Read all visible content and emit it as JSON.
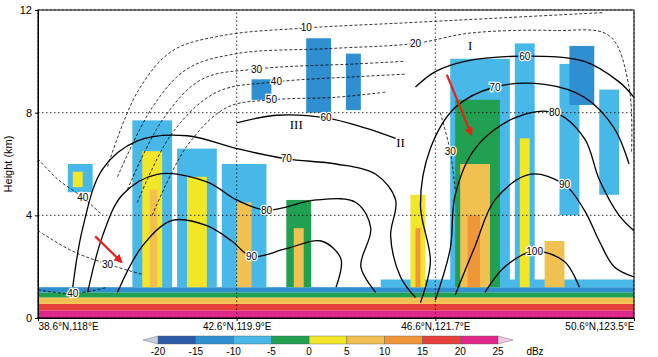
{
  "chart_data": {
    "type": "contour",
    "ylabel": "Height (km)",
    "xlim": [
      38.6,
      50.6
    ],
    "ylim": [
      0,
      12
    ],
    "xticks": [
      {
        "value": 38.6,
        "label": "38.6°N,118°E"
      },
      {
        "value": 42.6,
        "label": "42.6°N,119.9°E"
      },
      {
        "value": 46.6,
        "label": "46.6°N,121.7°E"
      },
      {
        "value": 50.6,
        "label": "50.6°N,123.5°E"
      }
    ],
    "yticks": [
      0,
      4,
      8,
      12
    ],
    "grid": true,
    "series": [
      {
        "level": 10,
        "line_style": "dashed",
        "x": [
          40.0,
          40.6,
          41.3,
          42.3,
          44.0,
          46.0,
          48.0,
          50.0
        ],
        "y": [
          5.9,
          8.8,
          10.4,
          11.0,
          11.3,
          11.5,
          11.7,
          11.9
        ]
      },
      {
        "level": 20,
        "line_style": "dashed",
        "x": [
          40.2,
          40.9,
          41.6,
          42.6,
          44.5,
          46.2,
          47.3,
          49.0,
          50.1,
          50.5,
          50.55
        ],
        "y": [
          5.5,
          8.2,
          9.7,
          10.3,
          10.5,
          10.7,
          11.1,
          11.2,
          11.0,
          9.0,
          6.4
        ]
      },
      {
        "level": 30,
        "line_style": "dashed",
        "x": [
          40.4,
          41.1,
          41.9,
          43.0,
          45.0,
          46.0
        ],
        "y": [
          5.0,
          7.7,
          9.3,
          9.7,
          9.9,
          10.0
        ]
      },
      {
        "level": 40,
        "line_style": "dashed",
        "x": [
          40.6,
          41.3,
          42.2,
          43.4,
          45.0,
          46.0
        ],
        "y": [
          4.5,
          7.2,
          8.8,
          9.2,
          9.4,
          9.5
        ]
      },
      {
        "level": 50,
        "line_style": "dashed",
        "x": [
          40.9,
          41.6,
          42.4,
          43.3,
          44.6,
          45.6
        ],
        "y": [
          4.0,
          6.7,
          8.2,
          8.5,
          8.6,
          8.8
        ]
      },
      {
        "level": 40,
        "line_style": "dashed",
        "x": [
          38.6,
          39.0,
          39.5,
          39.9
        ],
        "y": [
          6.2,
          5.4,
          4.7,
          4.0
        ]
      },
      {
        "level": 30,
        "line_style": "dashed",
        "x": [
          38.6,
          39.3,
          40.0,
          40.7
        ],
        "y": [
          3.4,
          2.6,
          2.1,
          1.7
        ]
      },
      {
        "level": 40,
        "line_style": "dashed",
        "x": [
          38.6,
          39.3,
          40.0
        ],
        "y": [
          1.1,
          0.95,
          1.2
        ]
      },
      {
        "level": 30,
        "line_style": "dashed",
        "x": [
          46.7,
          46.9,
          47.0
        ],
        "y": [
          8.0,
          6.5,
          5.0
        ]
      },
      {
        "level": 60,
        "line_style": "solid",
        "x": [
          42.6,
          43.4,
          44.4,
          45.2,
          45.8
        ],
        "y": [
          7.6,
          7.9,
          7.8,
          7.4,
          7.0
        ]
      },
      {
        "level": 60,
        "line_style": "solid",
        "x": [
          46.2,
          46.6,
          47.2,
          48.4,
          49.6,
          50.3,
          50.6
        ],
        "y": [
          9.0,
          9.6,
          10.0,
          10.2,
          10.0,
          9.2,
          8.6
        ]
      },
      {
        "level": 70,
        "line_style": "solid",
        "x": [
          39.3,
          39.5,
          39.9,
          40.6,
          41.6,
          42.6,
          43.6,
          44.6,
          45.4,
          45.8,
          45.7,
          45.9,
          46.2
        ],
        "y": [
          1.2,
          3.5,
          5.8,
          6.9,
          7.1,
          6.6,
          6.2,
          6.0,
          5.6,
          4.6,
          3.2,
          1.6,
          0.8
        ]
      },
      {
        "level": 80,
        "line_style": "solid",
        "x": [
          39.6,
          39.9,
          40.3,
          41.0,
          42.0,
          42.6,
          43.2,
          44.2,
          45.0,
          45.3,
          45.1,
          45.4
        ],
        "y": [
          1.0,
          3.2,
          4.8,
          5.6,
          5.3,
          4.6,
          4.2,
          4.6,
          4.5,
          3.5,
          2.0,
          1.0
        ]
      },
      {
        "level": 90,
        "line_style": "solid",
        "x": [
          40.2,
          40.7,
          41.3,
          42.0,
          42.5,
          42.9,
          43.6,
          44.3,
          44.7,
          44.6
        ],
        "y": [
          1.0,
          2.8,
          3.8,
          3.6,
          3.0,
          2.4,
          2.7,
          3.0,
          2.3,
          1.2
        ]
      },
      {
        "level": 70,
        "line_style": "solid",
        "x": [
          46.3,
          46.5,
          46.3,
          46.5,
          47.0,
          47.8,
          48.8,
          49.6,
          50.2,
          50.5
        ],
        "y": [
          0.6,
          2.2,
          4.4,
          6.6,
          8.2,
          9.0,
          9.1,
          8.6,
          7.4,
          6.0
        ]
      },
      {
        "level": 80,
        "line_style": "solid",
        "x": [
          46.6,
          46.9,
          47.0,
          47.4,
          48.2,
          49.0,
          49.6,
          49.9,
          50.3,
          50.6
        ],
        "y": [
          0.7,
          2.7,
          4.8,
          6.6,
          7.8,
          8.0,
          7.0,
          5.4,
          4.0,
          3.4
        ]
      },
      {
        "level": 90,
        "line_style": "solid",
        "x": [
          47.0,
          47.4,
          47.8,
          48.5,
          49.2,
          49.6,
          49.9,
          50.2,
          50.6
        ],
        "y": [
          0.9,
          2.8,
          4.6,
          5.6,
          5.2,
          4.2,
          3.0,
          2.0,
          1.6
        ]
      },
      {
        "level": 100,
        "line_style": "solid",
        "x": [
          47.6,
          48.0,
          48.6,
          49.2,
          49.5
        ],
        "y": [
          1.0,
          2.0,
          2.6,
          2.2,
          1.2
        ]
      }
    ],
    "cells": [
      {
        "x0": 38.6,
        "x1": 50.6,
        "y0": 0,
        "y1": 0.3,
        "dbz": 22
      },
      {
        "x0": 38.6,
        "x1": 50.6,
        "y0": 0.3,
        "y1": 0.55,
        "dbz": 17
      },
      {
        "x0": 38.6,
        "x1": 50.6,
        "y0": 0.55,
        "y1": 0.8,
        "dbz": 7
      },
      {
        "x0": 38.6,
        "x1": 50.6,
        "y0": 0.8,
        "y1": 1.0,
        "dbz": -3
      },
      {
        "x0": 38.6,
        "x1": 50.6,
        "y0": 1.0,
        "y1": 1.2,
        "dbz": -12
      },
      {
        "x0": 45.5,
        "x1": 50.6,
        "y0": 1.2,
        "y1": 1.5,
        "dbz": -8
      },
      {
        "x0": 39.2,
        "x1": 39.7,
        "y0": 4.9,
        "y1": 6.0,
        "dbz": -10
      },
      {
        "x0": 39.3,
        "x1": 39.5,
        "y0": 5.1,
        "y1": 5.7,
        "dbz": 3
      },
      {
        "x0": 40.5,
        "x1": 41.3,
        "y0": 1.2,
        "y1": 7.7,
        "dbz": -10
      },
      {
        "x0": 40.7,
        "x1": 41.1,
        "y0": 1.2,
        "y1": 6.5,
        "dbz": 0
      },
      {
        "x0": 40.85,
        "x1": 41.0,
        "y0": 1.2,
        "y1": 5.0,
        "dbz": 8
      },
      {
        "x0": 41.4,
        "x1": 42.2,
        "y0": 1.2,
        "y1": 6.6,
        "dbz": -10
      },
      {
        "x0": 41.6,
        "x1": 42.0,
        "y0": 1.2,
        "y1": 5.5,
        "dbz": 3
      },
      {
        "x0": 42.3,
        "x1": 43.2,
        "y0": 1.2,
        "y1": 6.0,
        "dbz": -7
      },
      {
        "x0": 42.6,
        "x1": 42.9,
        "y0": 1.2,
        "y1": 4.5,
        "dbz": 8
      },
      {
        "x0": 43.6,
        "x1": 44.1,
        "y0": 1.2,
        "y1": 4.6,
        "dbz": -2
      },
      {
        "x0": 43.75,
        "x1": 43.95,
        "y0": 1.2,
        "y1": 3.5,
        "dbz": 8
      },
      {
        "x0": 42.9,
        "x1": 43.3,
        "y0": 8.5,
        "y1": 9.3,
        "dbz": -15
      },
      {
        "x0": 44.0,
        "x1": 44.5,
        "y0": 8.0,
        "y1": 10.9,
        "dbz": -12
      },
      {
        "x0": 44.8,
        "x1": 45.1,
        "y0": 8.1,
        "y1": 10.3,
        "dbz": -12
      },
      {
        "x0": 46.1,
        "x1": 46.4,
        "y0": 1.2,
        "y1": 4.8,
        "dbz": 3
      },
      {
        "x0": 46.2,
        "x1": 46.3,
        "y0": 1.2,
        "y1": 3.5,
        "dbz": 12
      },
      {
        "x0": 46.9,
        "x1": 48.1,
        "y0": 1.2,
        "y1": 10.1,
        "dbz": -10
      },
      {
        "x0": 47.0,
        "x1": 47.9,
        "y0": 1.2,
        "y1": 8.5,
        "dbz": -3
      },
      {
        "x0": 47.1,
        "x1": 47.7,
        "y0": 1.2,
        "y1": 6.0,
        "dbz": 8
      },
      {
        "x0": 47.25,
        "x1": 47.5,
        "y0": 1.2,
        "y1": 4.0,
        "dbz": 13
      },
      {
        "x0": 48.2,
        "x1": 48.6,
        "y0": 1.2,
        "y1": 10.7,
        "dbz": -10
      },
      {
        "x0": 48.3,
        "x1": 48.5,
        "y0": 1.2,
        "y1": 7.0,
        "dbz": 3
      },
      {
        "x0": 48.8,
        "x1": 49.2,
        "y0": 1.2,
        "y1": 3.0,
        "dbz": 8
      },
      {
        "x0": 49.1,
        "x1": 49.5,
        "y0": 4.0,
        "y1": 9.9,
        "dbz": -7
      },
      {
        "x0": 49.3,
        "x1": 49.8,
        "y0": 8.3,
        "y1": 10.6,
        "dbz": -15
      },
      {
        "x0": 49.9,
        "x1": 50.3,
        "y0": 4.8,
        "y1": 8.9,
        "dbz": -10
      }
    ],
    "colorbar": {
      "label": "dBz",
      "range": [
        -20,
        25
      ],
      "ticks": [
        -20,
        -15,
        -10,
        -5,
        0,
        5,
        10,
        15,
        20,
        25
      ],
      "colors": [
        "#c8d0e0",
        "#2c5aa8",
        "#2f8fd0",
        "#48b8e8",
        "#20a050",
        "#f2e628",
        "#f0c050",
        "#f0963a",
        "#e8403a",
        "#e0288a",
        "#f4c8e0"
      ]
    },
    "annotations": [
      {
        "text": "I",
        "x": 47.3,
        "y": 10.6
      },
      {
        "text": "II",
        "x": 45.9,
        "y": 6.85
      },
      {
        "text": "III",
        "x": 43.8,
        "y": 7.55
      }
    ]
  }
}
